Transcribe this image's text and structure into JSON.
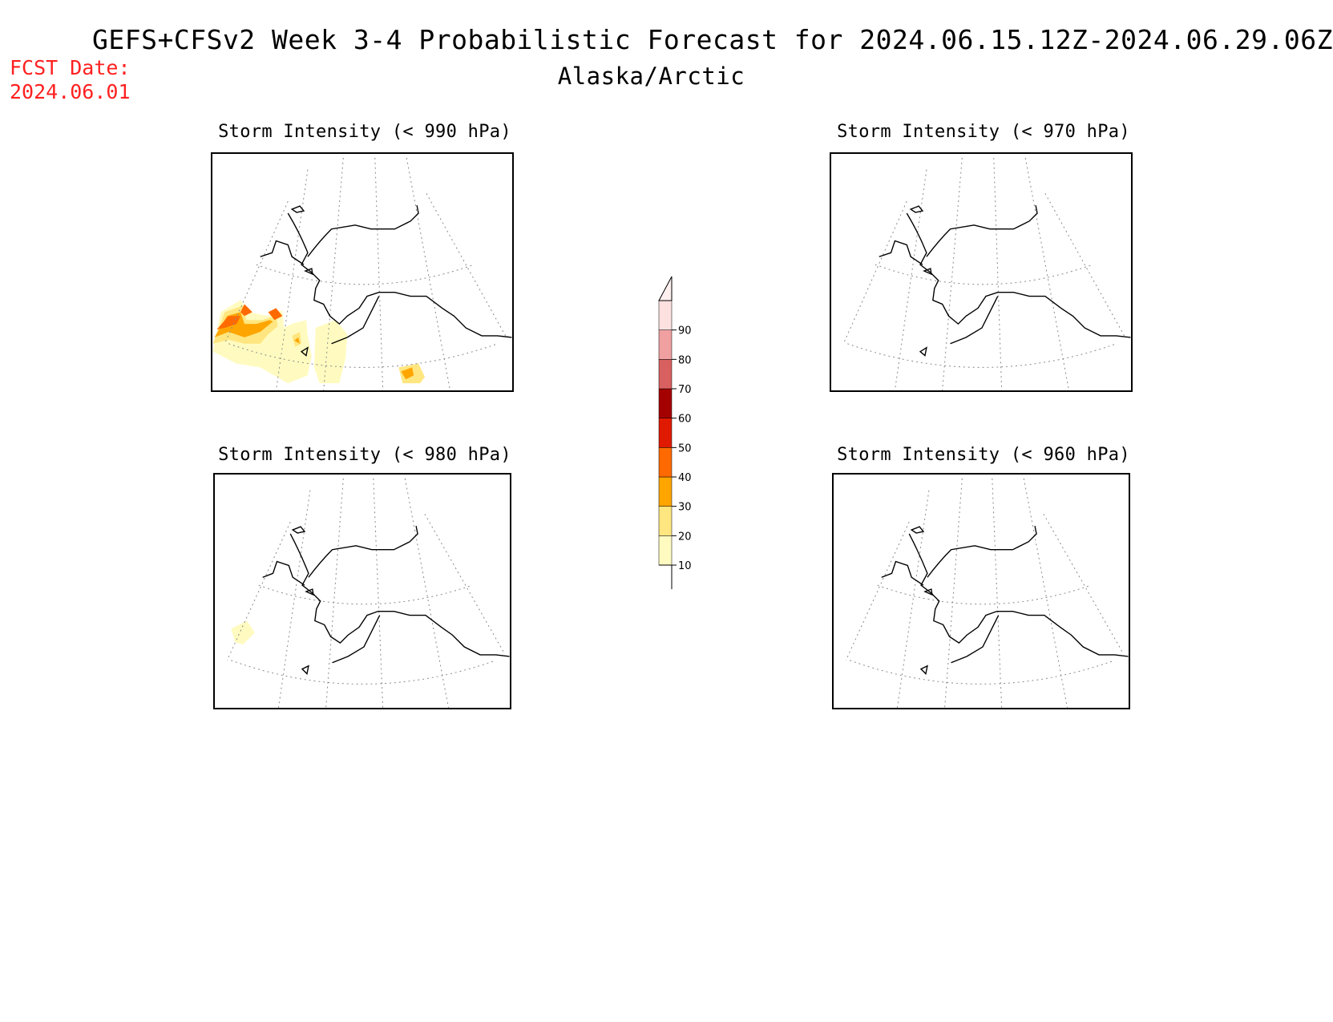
{
  "header": {
    "title": "GEFS+CFSv2 Week 3-4 Probabilistic Forecast for 2024.06.15.12Z-2024.06.29.06Z",
    "region": "Alaska/Arctic",
    "fcst_label": "FCST Date:",
    "fcst_date": "2024.06.01"
  },
  "panels": [
    {
      "id": "p990",
      "title": "Storm Intensity (< 990 hPa)",
      "shading": "strong"
    },
    {
      "id": "p970",
      "title": "Storm Intensity (< 970 hPa)",
      "shading": "none"
    },
    {
      "id": "p980",
      "title": "Storm Intensity (< 980 hPa)",
      "shading": "weak"
    },
    {
      "id": "p960",
      "title": "Storm Intensity (< 960 hPa)",
      "shading": "none"
    }
  ],
  "colorbar": {
    "levels": [
      "10",
      "20",
      "30",
      "40",
      "50",
      "60",
      "70",
      "80",
      "90"
    ],
    "colors": [
      "#fffbc0",
      "#ffe680",
      "#ffa500",
      "#ff6a00",
      "#e01a00",
      "#a50000",
      "#d96060",
      "#f0a0a0",
      "#fde0e0"
    ]
  }
}
